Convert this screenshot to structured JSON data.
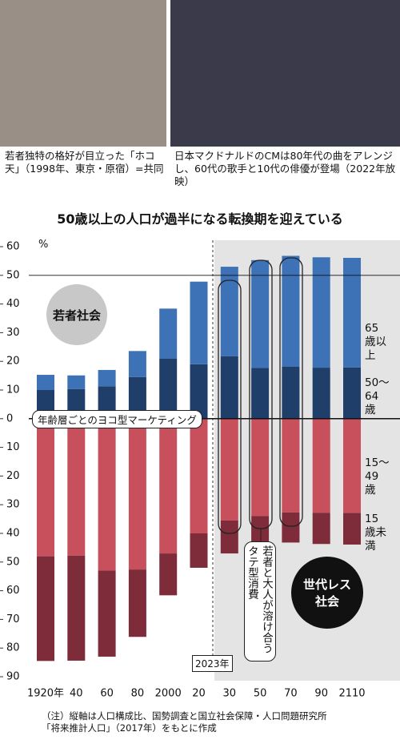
{
  "captions": [
    "若者独特の格好が目立った「ホコ天」（1998年、東京・原宿）=共同",
    "日本マクドナルドのCMは80年代の曲をアレンジし、60代の歌手と10代の俳優が登場（2022年放映）"
  ],
  "chart_data": {
    "type": "bar",
    "stacked": true,
    "title": "50歳以上の人口が過半になる転換期を迎えている",
    "ylabel": "%",
    "categories": [
      "1920年",
      "40",
      "60",
      "80",
      "2000",
      "20",
      "30",
      "50",
      "70",
      "90",
      "2110"
    ],
    "series": [
      {
        "name": "50〜64歳",
        "color": "#1f3e6a",
        "values": [
          10,
          10.3,
          11.3,
          14.5,
          21,
          19,
          21.8,
          17.7,
          18.2,
          17.8,
          17.9
        ]
      },
      {
        "name": "65歳以上",
        "color": "#3e72b6",
        "values": [
          5.3,
          4.8,
          5.7,
          9.1,
          17.4,
          28.8,
          31.2,
          37.6,
          38.6,
          38.5,
          38.2
        ]
      },
      {
        "name": "15〜49歳",
        "color": "#c8505d",
        "values": [
          -48,
          -47.8,
          -53,
          -52.6,
          -47,
          -40,
          -35.5,
          -34,
          -32.7,
          -32.8,
          -32.9
        ]
      },
      {
        "name": "15歳未満",
        "color": "#7e2c39",
        "values": [
          -36.5,
          -36.6,
          -30,
          -23.5,
          -14.6,
          -12,
          -11.5,
          -10.7,
          -10.5,
          -10.9,
          -11
        ]
      }
    ],
    "ylim": [
      -90,
      60
    ],
    "yticks": [
      60,
      50,
      40,
      30,
      20,
      10,
      0,
      {
        "value": -10,
        "label": "10"
      },
      {
        "value": -20,
        "label": "20"
      },
      {
        "value": -30,
        "label": "30"
      },
      {
        "value": -40,
        "label": "40"
      },
      {
        "value": -50,
        "label": "50"
      },
      {
        "value": -60,
        "label": "60"
      },
      {
        "value": -70,
        "label": "70"
      },
      {
        "value": -80,
        "label": "80"
      },
      {
        "value": -90,
        "label": "90"
      }
    ],
    "annotations": [
      "若者社会",
      "世代レス社会",
      "年齢層ごとのヨコ型マーケティング",
      "若者と大人が溶け合うタテ型消費",
      "2023年"
    ]
  },
  "note": [
    "（注）縦軸は人口構成比、国勢調査と国立社会保障・人口問題研究所",
    "「将来推計人口」（2017年）をもとに作成"
  ]
}
